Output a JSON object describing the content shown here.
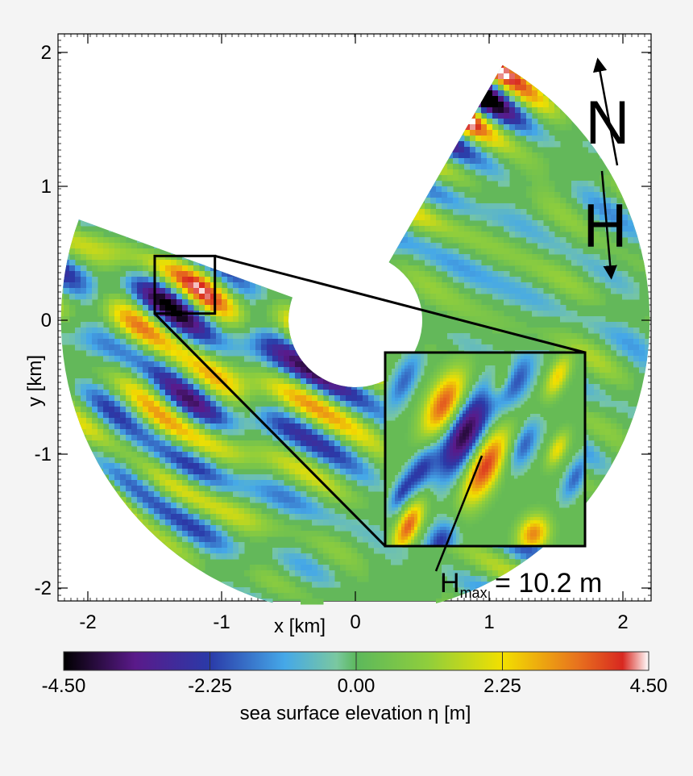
{
  "chart_data": {
    "type": "heatmap",
    "title": "",
    "xlabel": "x [km]",
    "ylabel": "y [km]",
    "xlim": [
      -2.2,
      2.2
    ],
    "ylim": [
      -2.1,
      2.15
    ],
    "x_ticks": [
      {
        "value": -2,
        "label": "-2"
      },
      {
        "value": -1,
        "label": "-1"
      },
      {
        "value": 0,
        "label": "0"
      },
      {
        "value": 1,
        "label": "1"
      },
      {
        "value": 2,
        "label": "2"
      }
    ],
    "y_ticks": [
      {
        "value": -2,
        "label": "-2"
      },
      {
        "value": -1,
        "label": "-1"
      },
      {
        "value": 0,
        "label": "0"
      },
      {
        "value": 1,
        "label": "1"
      },
      {
        "value": 2,
        "label": "2"
      }
    ],
    "field_sector": {
      "outer_radius_km": 2.2,
      "inner_radius_km": 0.5,
      "start_angle_deg": 30,
      "end_angle_deg": 290,
      "note_angles": "compass angles measured clockwise from north"
    },
    "colorbar": {
      "label": "sea surface elevation η [m]",
      "min": -4.5,
      "max": 4.5,
      "ticks": [
        {
          "value": -4.5,
          "label": "-4.50"
        },
        {
          "value": -2.25,
          "label": "-2.25"
        },
        {
          "value": 0,
          "label": "0.00"
        },
        {
          "value": 2.25,
          "label": "2.25"
        },
        {
          "value": 4.5,
          "label": "4.50"
        }
      ],
      "stops": [
        {
          "value": -4.5,
          "color": "#000000"
        },
        {
          "value": -3.4,
          "color": "#5a1a8a"
        },
        {
          "value": -2.25,
          "color": "#2a3aa8"
        },
        {
          "value": -1.1,
          "color": "#45a8e8"
        },
        {
          "value": -0.3,
          "color": "#7ac8a0"
        },
        {
          "value": 0,
          "color": "#5cb85c"
        },
        {
          "value": 1.1,
          "color": "#8fce3c"
        },
        {
          "value": 2.25,
          "color": "#f2e000"
        },
        {
          "value": 3.4,
          "color": "#e8731e"
        },
        {
          "value": 4.1,
          "color": "#d82820"
        },
        {
          "value": 4.5,
          "color": "#ffffff"
        }
      ]
    },
    "zoom_box": {
      "x_range_km": [
        -1.5,
        -1.05
      ],
      "y_range_km": [
        0.05,
        0.48
      ]
    },
    "annotation": {
      "main": "H",
      "sub": "max",
      "rest": " = 10.2 m",
      "value_m": 10.2
    },
    "compass": {
      "north_label": "N",
      "wave_label": "H"
    }
  }
}
